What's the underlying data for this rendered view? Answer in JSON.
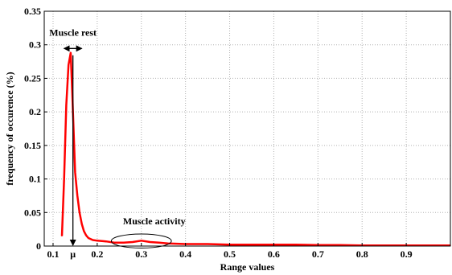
{
  "chart_data": {
    "type": "line",
    "xlabel": "Range values",
    "ylabel": "frequency of occurence (%)",
    "xlim": [
      0.08,
      1.0
    ],
    "ylim": [
      0,
      0.35
    ],
    "grid": true,
    "x_ticks": [
      {
        "v": 0.1,
        "label": "0.1"
      },
      {
        "v": 0.2,
        "label": "0.2"
      },
      {
        "v": 0.3,
        "label": "0.3"
      },
      {
        "v": 0.4,
        "label": "0.4"
      },
      {
        "v": 0.5,
        "label": "0.5"
      },
      {
        "v": 0.6,
        "label": "0.6"
      },
      {
        "v": 0.7,
        "label": "0.7"
      },
      {
        "v": 0.8,
        "label": "0.8"
      },
      {
        "v": 0.9,
        "label": "0.9"
      }
    ],
    "y_ticks": [
      {
        "v": 0,
        "label": "0"
      },
      {
        "v": 0.05,
        "label": "0.05"
      },
      {
        "v": 0.1,
        "label": "0.1"
      },
      {
        "v": 0.15,
        "label": "0.15"
      },
      {
        "v": 0.2,
        "label": "0.2"
      },
      {
        "v": 0.25,
        "label": "0.25"
      },
      {
        "v": 0.3,
        "label": "0.3"
      },
      {
        "v": 0.35,
        "label": "0.35"
      }
    ],
    "series": [
      {
        "color": "#ff0000",
        "x": [
          0.12,
          0.125,
          0.13,
          0.135,
          0.14,
          0.145,
          0.15,
          0.155,
          0.16,
          0.165,
          0.17,
          0.175,
          0.18,
          0.19,
          0.2,
          0.22,
          0.24,
          0.26,
          0.28,
          0.3,
          0.32,
          0.34,
          0.36,
          0.4,
          0.45,
          0.5,
          0.55,
          0.6,
          0.65,
          0.7,
          0.75,
          0.8,
          0.85,
          0.9,
          0.95,
          1.0
        ],
        "y": [
          0.015,
          0.1,
          0.21,
          0.27,
          0.288,
          0.2,
          0.11,
          0.075,
          0.05,
          0.033,
          0.022,
          0.016,
          0.012,
          0.009,
          0.008,
          0.007,
          0.005,
          0.005,
          0.006,
          0.008,
          0.006,
          0.005,
          0.004,
          0.003,
          0.003,
          0.002,
          0.002,
          0.002,
          0.002,
          0.0015,
          0.0015,
          0.001,
          0.001,
          0.001,
          0.001,
          0.001
        ]
      }
    ],
    "annotations": {
      "rest_label": "Muscle rest",
      "rest_peak_x": 0.145,
      "rest_arrow_x": [
        0.125,
        0.165
      ],
      "rest_arrow_y": 0.2945,
      "activity_label": "Muscle activity",
      "activity_center": [
        0.3,
        0.0075
      ],
      "activity_radius": [
        0.068,
        0.0105
      ],
      "mu_symbol": "μ",
      "mu_x": 0.145
    }
  }
}
